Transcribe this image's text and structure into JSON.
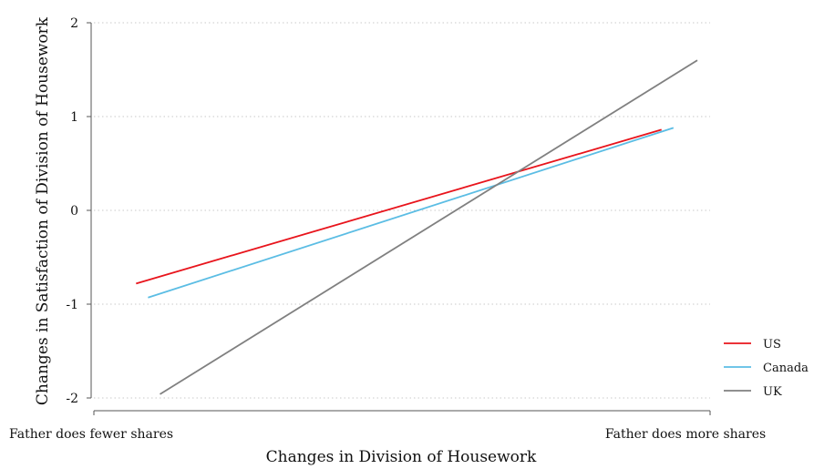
{
  "chart_data": {
    "type": "line",
    "xlabel": "Changes in Division of Housework",
    "ylabel": "Changes in Satisfaction of Division of Housework",
    "x_tick_labels": [
      "Father does fewer shares",
      "Father does more shares"
    ],
    "y_ticks": [
      2,
      1,
      0,
      -1,
      -2
    ],
    "y_tick_labels": [
      "2",
      "1",
      "0",
      "-1",
      "-2"
    ],
    "ylim": [
      -2,
      2
    ],
    "grid": true,
    "legend_position": "right",
    "series": [
      {
        "name": "US",
        "color": "#e8141c",
        "points": [
          [
            0.06,
            -0.78
          ],
          [
            0.94,
            0.86
          ]
        ]
      },
      {
        "name": "Canada",
        "color": "#5bbde4",
        "points": [
          [
            0.08,
            -0.93
          ],
          [
            0.96,
            0.88
          ]
        ]
      },
      {
        "name": "UK",
        "color": "#808080",
        "points": [
          [
            0.1,
            -1.96
          ],
          [
            1.0,
            1.6
          ]
        ]
      }
    ]
  }
}
